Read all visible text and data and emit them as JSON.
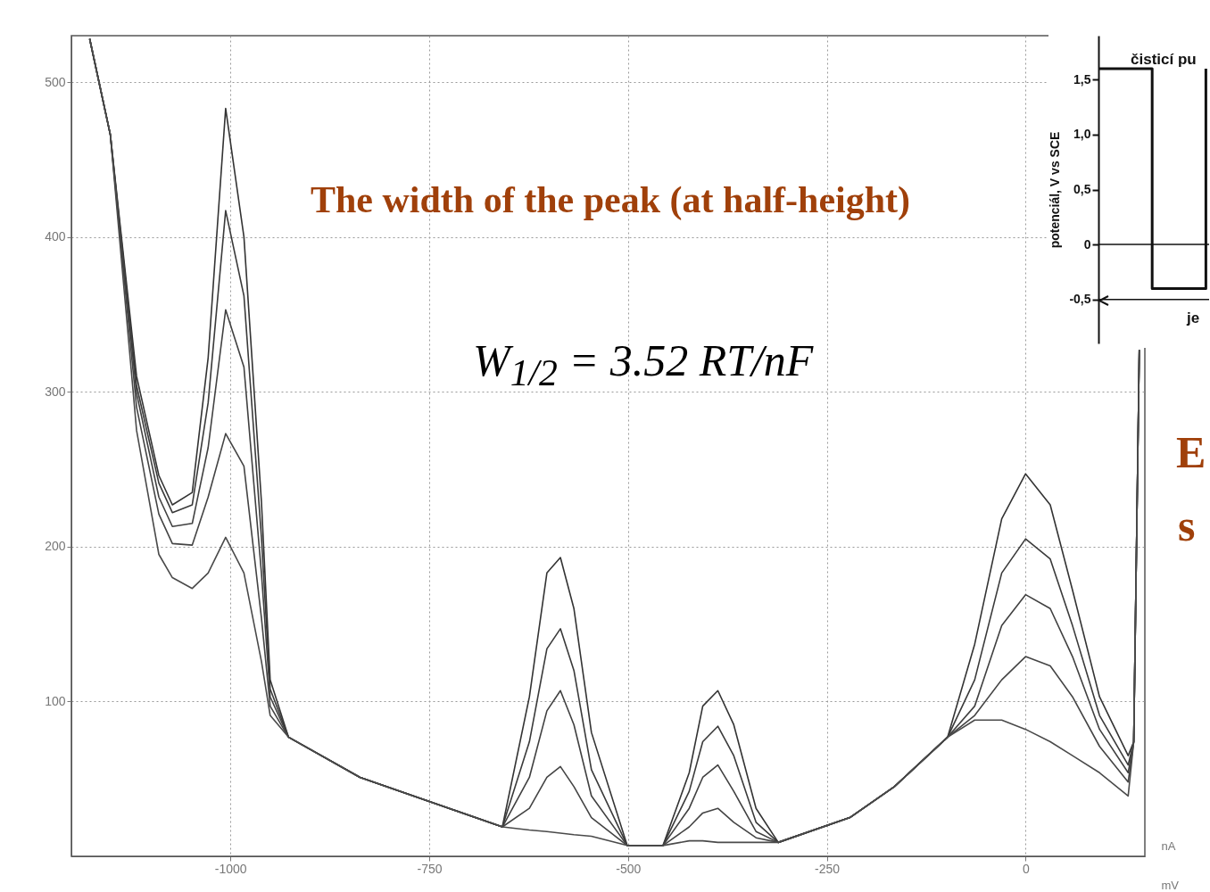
{
  "chart_data": [
    {
      "type": "line",
      "xlabel": "mV",
      "ylabel": "nA",
      "x": [
        -1177,
        -1151,
        -1118,
        -1090,
        -1073,
        -1048,
        -1028,
        -1006,
        -983,
        -961,
        -950,
        -927,
        -837,
        -725,
        -658,
        -624,
        -602,
        -585,
        -568,
        -546,
        -501,
        -456,
        -423,
        -406,
        -387,
        -367,
        -339,
        -311,
        -221,
        -165,
        -98,
        -64,
        -30,
        0,
        31,
        59,
        93,
        129,
        136,
        143
      ],
      "series": [
        {
          "color": "#333333",
          "values": [
            528,
            466,
            310,
            246,
            227,
            235,
            322,
            483,
            400,
            229,
            114,
            77,
            51,
            31,
            19,
            103,
            183,
            193,
            160,
            80,
            7,
            7,
            54,
            97,
            107,
            85,
            31,
            9,
            25,
            45,
            77,
            137,
            218,
            247,
            227,
            172,
            103,
            65,
            74,
            327
          ]
        },
        {
          "color": "#3a3a3a",
          "values": [
            528,
            466,
            304,
            241,
            222,
            227,
            293,
            417,
            362,
            206,
            108,
            77,
            51,
            31,
            19,
            74,
            134,
            147,
            120,
            56,
            7,
            7,
            42,
            74,
            84,
            65,
            22,
            9,
            25,
            45,
            77,
            114,
            183,
            205,
            192,
            149,
            91,
            59,
            74,
            327
          ]
        },
        {
          "color": "#404040",
          "values": [
            528,
            466,
            299,
            232,
            213,
            215,
            264,
            353,
            316,
            183,
            103,
            77,
            51,
            31,
            19,
            51,
            94,
            107,
            85,
            39,
            7,
            7,
            31,
            51,
            59,
            42,
            16,
            9,
            25,
            45,
            77,
            97,
            149,
            169,
            160,
            129,
            82,
            54,
            74,
            327
          ]
        },
        {
          "color": "#444444",
          "values": [
            528,
            466,
            290,
            221,
            202,
            201,
            232,
            273,
            252,
            154,
            97,
            77,
            51,
            31,
            19,
            31,
            51,
            58,
            45,
            25,
            7,
            7,
            19,
            28,
            31,
            22,
            12,
            9,
            25,
            45,
            77,
            91,
            114,
            129,
            123,
            103,
            71,
            48,
            74,
            327
          ]
        },
        {
          "color": "#4a4a4a",
          "values": [
            528,
            466,
            275,
            195,
            180,
            173,
            183,
            206,
            183,
            126,
            91,
            77,
            51,
            31,
            19,
            17,
            16,
            15,
            14,
            13,
            7,
            7,
            10,
            10,
            9,
            9,
            9,
            9,
            25,
            45,
            77,
            88,
            88,
            82,
            74,
            65,
            54,
            39,
            74,
            327
          ]
        }
      ],
      "xlim": [
        -1200,
        150
      ],
      "ylim": [
        0,
        530
      ],
      "xticks": [
        -1000,
        -750,
        -500,
        -250,
        0
      ],
      "yticks": [
        100,
        200,
        300,
        400,
        500
      ],
      "grid": true,
      "legend": false,
      "annotations": [
        "The width of the peak (at half-height)",
        "W$_{1/2}$ = 3.52 RT/nF",
        "E",
        "s"
      ]
    },
    {
      "type": "step",
      "title": "čisticí pu",
      "ylabel": "potenciál, V vs SCE",
      "categories": [
        null,
        null,
        null
      ],
      "values": [
        1.6,
        -0.4,
        1.6
      ],
      "color": "#111111",
      "ylim": [
        -0.9,
        1.9
      ],
      "yticks": [
        {
          "value": 1.5,
          "label": "1,5"
        },
        {
          "value": 1.0,
          "label": "1,0"
        },
        {
          "value": 0.5,
          "label": "0,5"
        },
        0,
        {
          "value": -0.5,
          "label": "-0,5"
        }
      ],
      "ref_lines": [
        {
          "axis": "y",
          "value": 0
        },
        {
          "axis": "y",
          "value": -0.5
        }
      ],
      "tick_labels": "y",
      "annotations": [
        "je"
      ]
    }
  ]
}
